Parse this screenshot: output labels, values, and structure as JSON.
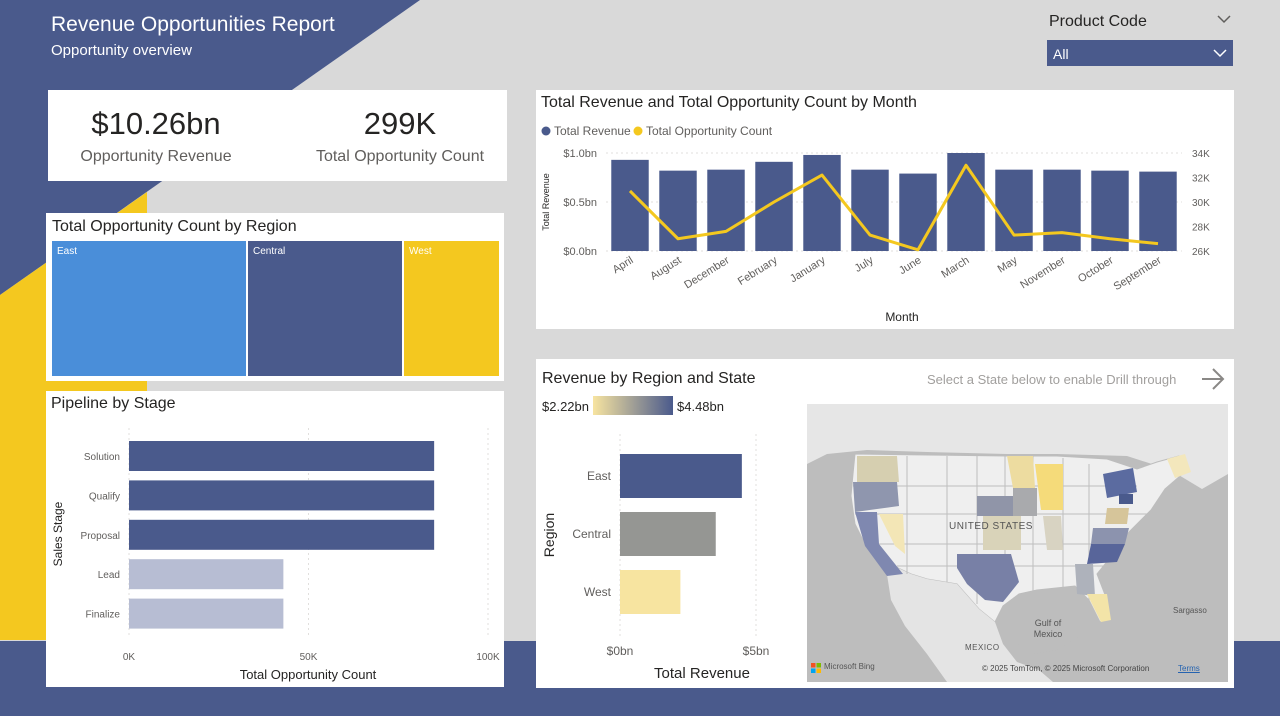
{
  "report": {
    "title": "Revenue Opportunities Report",
    "subtitle": "Opportunity overview"
  },
  "theme": {
    "navy": "#4a5a8c",
    "yellow": "#f4c81f",
    "blue": "#4a8ed9",
    "grey": "#959693",
    "pale_yellow": "#f7e4a0",
    "lavender": "#b7bdd3",
    "background": "#d9d9d9"
  },
  "slicer": {
    "title": "Product Code",
    "selected": "All",
    "icon": "chevron-down-icon"
  },
  "kpis": [
    {
      "value": "$10.26bn",
      "label": "Opportunity Revenue"
    },
    {
      "value": "299K",
      "label": "Total Opportunity Count"
    }
  ],
  "treemap": {
    "title": "Total Opportunity Count by Region",
    "chart_data": {
      "type": "treemap",
      "title": "Total Opportunity Count by Region",
      "categories": [
        "East",
        "Central",
        "West"
      ],
      "shares": [
        0.4,
        0.32,
        0.2
      ]
    }
  },
  "pipeline": {
    "title": "Pipeline by Stage",
    "chart_data": {
      "type": "bar",
      "orientation": "horizontal",
      "title": "Pipeline by Stage",
      "categories": [
        "Solution",
        "Qualify",
        "Proposal",
        "Lead",
        "Finalize"
      ],
      "values": [
        85000,
        85000,
        85000,
        43000,
        43000
      ],
      "xlabel": "Total Opportunity Count",
      "ylabel": "Sales Stage",
      "xlim": [
        0,
        100000
      ],
      "xticks": [
        "0K",
        "50K",
        "100K"
      ],
      "grid": true
    }
  },
  "combo": {
    "title": "Total Revenue and Total Opportunity Count by Month",
    "chart_data": {
      "type": "bar+line",
      "title": "Total Revenue and Total Opportunity Count by Month",
      "categories": [
        "April",
        "August",
        "December",
        "February",
        "January",
        "July",
        "June",
        "March",
        "May",
        "November",
        "October",
        "September"
      ],
      "series": [
        {
          "name": "Total Revenue",
          "type": "bar",
          "axis": "left",
          "values": [
            0.93,
            0.82,
            0.83,
            0.91,
            0.98,
            0.83,
            0.79,
            1.0,
            0.83,
            0.83,
            0.82,
            0.81
          ]
        },
        {
          "name": "Total Opportunity Count",
          "type": "line",
          "axis": "right",
          "values": [
            30.9,
            27.0,
            27.6,
            30.0,
            32.2,
            27.3,
            26.1,
            33.0,
            27.3,
            27.5,
            27.0,
            26.6
          ]
        }
      ],
      "xlabel": "Month",
      "ylabel": "Total Revenue",
      "ylim": [
        0,
        1.0
      ],
      "yticks": [
        "$0.0bn",
        "$0.5bn",
        "$1.0bn"
      ],
      "y2lim": [
        26,
        34
      ],
      "y2ticks": [
        "26K",
        "28K",
        "30K",
        "32K",
        "34K"
      ],
      "grid": true,
      "legend": "top-left"
    }
  },
  "region_state": {
    "title": "Revenue by Region and State",
    "drill_hint": "Select a State below to enable Drill through",
    "drill_icon": "arrow-right-icon",
    "scale_min": "$2.22bn",
    "scale_max": "$4.48bn",
    "chart_data": {
      "type": "bar",
      "orientation": "horizontal",
      "title": "Revenue by Region and State",
      "categories": [
        "East",
        "Central",
        "West"
      ],
      "values": [
        4.48,
        3.52,
        2.22
      ],
      "colors": [
        "#4a5a8c",
        "#959693",
        "#f7e4a0"
      ],
      "xlabel": "Total Revenue",
      "ylabel": "Region",
      "xlim": [
        0,
        5
      ],
      "xticks": [
        "$0bn",
        "$5bn"
      ],
      "grid": true
    },
    "map": {
      "country_label": "UNITED STATES",
      "labels": [
        "Gulf of Mexico",
        "MEXICO",
        "Sargasso"
      ],
      "logo": "Microsoft Bing",
      "copyright": "© 2025 TomTom, © 2025 Microsoft Corporation",
      "terms": "Terms"
    }
  }
}
